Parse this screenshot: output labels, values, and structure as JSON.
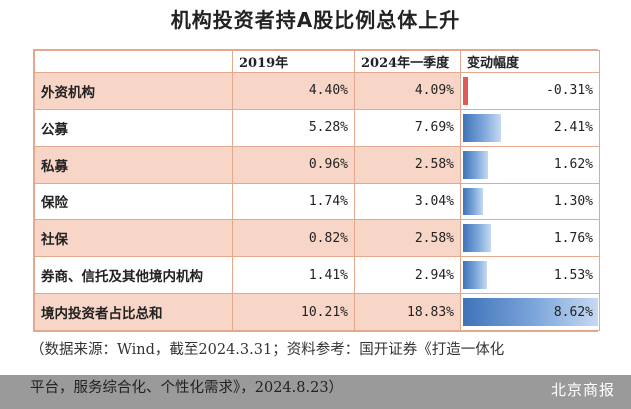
{
  "chart_data": {
    "type": "table",
    "title": "机构投资者持A股比例总体上升",
    "columns": [
      "",
      "2019年",
      "2024年一季度",
      "变动幅度"
    ],
    "rows": [
      {
        "label": "外资机构",
        "v2019": "4.40%",
        "v2024": "4.09%",
        "change": "-0.31%",
        "change_value": -0.31
      },
      {
        "label": "公募",
        "v2019": "5.28%",
        "v2024": "7.69%",
        "change": "2.41%",
        "change_value": 2.41
      },
      {
        "label": "私募",
        "v2019": "0.96%",
        "v2024": "2.58%",
        "change": "1.62%",
        "change_value": 1.62
      },
      {
        "label": "保险",
        "v2019": "1.74%",
        "v2024": "3.04%",
        "change": "1.30%",
        "change_value": 1.3
      },
      {
        "label": "社保",
        "v2019": "0.82%",
        "v2024": "2.58%",
        "change": "1.76%",
        "change_value": 1.76
      },
      {
        "label": "券商、信托及其他境内机构",
        "v2019": "1.41%",
        "v2024": "2.94%",
        "change": "1.53%",
        "change_value": 1.53
      },
      {
        "label": "境内投资者占比总和",
        "v2019": "10.21%",
        "v2024": "18.83%",
        "change": "8.62%",
        "change_value": 8.62
      }
    ],
    "colors": {
      "bar": "#3f73b8",
      "negative_bar": "#e05a5a",
      "row_shade": "#f7d6c7",
      "border": "#e2a98c"
    }
  },
  "source_line1": "（数据来源：Wind，截至2024.3.31；资料参考：国开证券《打造一体化",
  "source_line2": "平台，服务综合化、个性化需求》，2024.8.23）",
  "brand": "北京商报"
}
